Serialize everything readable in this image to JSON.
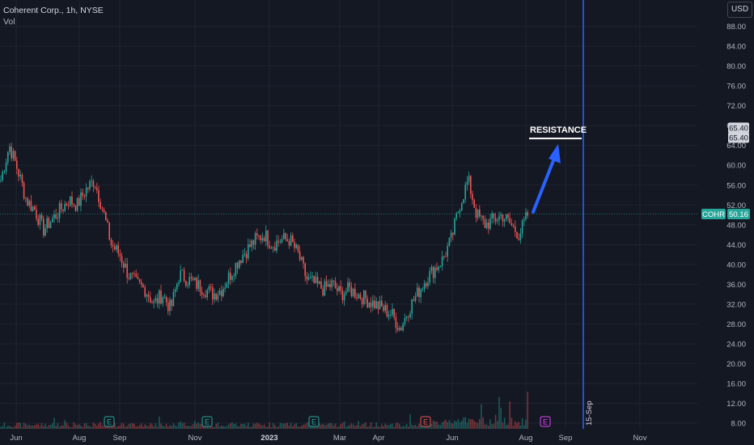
{
  "header": {
    "symbol_line": "Coherent Corp., 1h, NYSE",
    "volume_label": "Vol"
  },
  "currency_button": "USD",
  "price_scale": {
    "ticks": [
      "88.00",
      "84.00",
      "80.00",
      "76.00",
      "72.00",
      "68.00",
      "64.00",
      "60.00",
      "56.00",
      "52.00",
      "48.00",
      "44.00",
      "40.00",
      "36.00",
      "32.00",
      "28.00",
      "24.00",
      "20.00",
      "16.00",
      "12.00",
      "8.00"
    ]
  },
  "time_axis": {
    "labels": [
      {
        "text": "Jun",
        "bold": false
      },
      {
        "text": "Aug",
        "bold": false
      },
      {
        "text": "Sep",
        "bold": false
      },
      {
        "text": "Nov",
        "bold": false
      },
      {
        "text": "2023",
        "bold": true
      },
      {
        "text": "Mar",
        "bold": false
      },
      {
        "text": "Apr",
        "bold": false
      },
      {
        "text": "Jun",
        "bold": false
      },
      {
        "text": "Aug",
        "bold": false
      },
      {
        "text": "Sep",
        "bold": false
      },
      {
        "text": "Nov",
        "bold": false
      }
    ],
    "vertical_marker_label": "15-Sep"
  },
  "badges": {
    "symbol": "COHR",
    "last_price": "50.16",
    "resistance_price_1": "65.40",
    "resistance_price_2": "65.40"
  },
  "annotation": {
    "text": "RESISTANCE",
    "level": 65.4
  },
  "earnings_markers": [
    {
      "label": "E",
      "date": "2022-08",
      "color": "#26a69a"
    },
    {
      "label": "E",
      "date": "2022-11",
      "color": "#26a69a"
    },
    {
      "label": "E",
      "date": "2023-02",
      "color": "#26a69a"
    },
    {
      "label": "E",
      "date": "2023-05",
      "color": "#ef5350"
    },
    {
      "label": "E",
      "date": "2023-08",
      "color": "#e040fb"
    }
  ],
  "colors": {
    "background": "#141823",
    "up": "#26a69a",
    "down": "#ef5350",
    "marker_line": "#2962ff",
    "arrow": "#2962ff"
  },
  "chart_data": {
    "type": "line",
    "title": "Coherent Corp., 1h, NYSE",
    "xlabel": "",
    "ylabel": "",
    "ylim": [
      7,
      91
    ],
    "y_scale": "linear",
    "grid": true,
    "series": [
      {
        "name": "COHR",
        "x": [
          "2022-06-01",
          "2022-06-08",
          "2022-06-15",
          "2022-06-22",
          "2022-06-29",
          "2022-07-06",
          "2022-07-13",
          "2022-07-20",
          "2022-07-27",
          "2022-08-03",
          "2022-08-10",
          "2022-08-17",
          "2022-08-24",
          "2022-08-31",
          "2022-09-07",
          "2022-09-14",
          "2022-09-21",
          "2022-09-28",
          "2022-10-05",
          "2022-10-12",
          "2022-10-19",
          "2022-10-26",
          "2022-11-02",
          "2022-11-09",
          "2022-11-16",
          "2022-11-23",
          "2022-11-30",
          "2022-12-07",
          "2022-12-14",
          "2022-12-21",
          "2022-12-28",
          "2023-01-04",
          "2023-01-11",
          "2023-01-18",
          "2023-01-25",
          "2023-02-01",
          "2023-02-08",
          "2023-02-15",
          "2023-02-22",
          "2023-03-01",
          "2023-03-08",
          "2023-03-15",
          "2023-03-22",
          "2023-03-29",
          "2023-04-05",
          "2023-04-12",
          "2023-04-19",
          "2023-04-26",
          "2023-05-03",
          "2023-05-10",
          "2023-05-17",
          "2023-05-24",
          "2023-05-31",
          "2023-06-07",
          "2023-06-14",
          "2023-06-21",
          "2023-06-28",
          "2023-07-05",
          "2023-07-12",
          "2023-07-19",
          "2023-07-26",
          "2023-08-02",
          "2023-08-09"
        ],
        "values": [
          57,
          64,
          59,
          53,
          51,
          47,
          49,
          51,
          53,
          52,
          55,
          57,
          51,
          44,
          42,
          38,
          36,
          35,
          32,
          34,
          31,
          38,
          37,
          36,
          35,
          34,
          35,
          38,
          41,
          43,
          45,
          46,
          44,
          45,
          45,
          42,
          37,
          36,
          35,
          36,
          34,
          35,
          34,
          33,
          32,
          31,
          30,
          27,
          31,
          34,
          37,
          39,
          41,
          45,
          52,
          57,
          50,
          48,
          49,
          50,
          48,
          46,
          50
        ]
      }
    ],
    "price_range_last": [
      45.2,
      60.5
    ],
    "vertical_marker": "2023-09-15",
    "resistance_level": 65.4
  }
}
